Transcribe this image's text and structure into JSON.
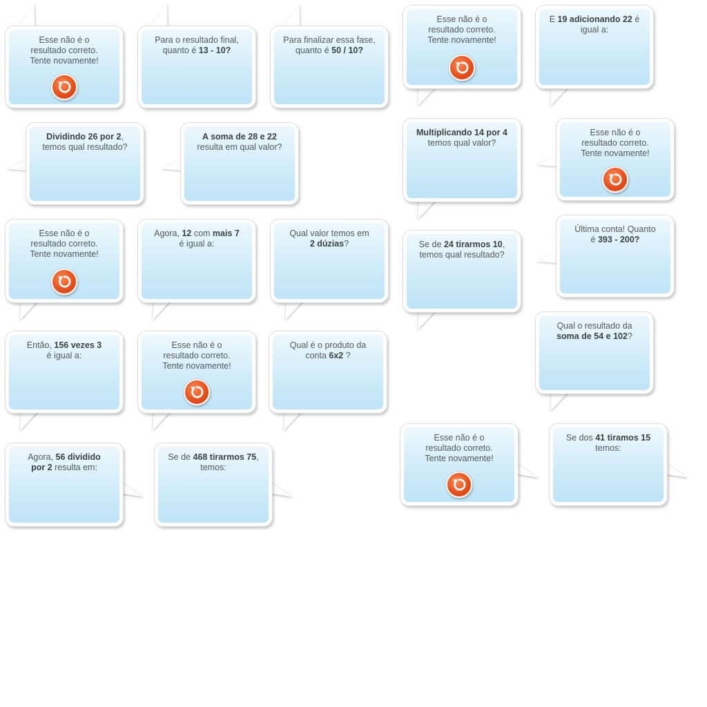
{
  "bubbles": [
    {
      "id": "b1",
      "lines": [
        [
          "Esse não é o"
        ],
        [
          "resultado correto."
        ],
        [
          "Tente novamente!"
        ]
      ],
      "retry": true
    },
    {
      "id": "b2",
      "lines": [
        [
          "Para o resultado final,"
        ],
        [
          "quanto é ",
          {
            "b": "13 - 10?"
          }
        ]
      ],
      "retry": false
    },
    {
      "id": "b3",
      "lines": [
        [
          "Para finalizar essa fase,"
        ],
        [
          "quanto é ",
          {
            "b": "50 / 10?"
          }
        ]
      ],
      "retry": false
    },
    {
      "id": "b4",
      "lines": [
        [
          "Esse não é o"
        ],
        [
          "resultado correto."
        ],
        [
          "Tente novamente!"
        ]
      ],
      "retry": true
    },
    {
      "id": "b5",
      "lines": [
        [
          "E ",
          {
            "b": "19 adicionando 22"
          },
          " é"
        ],
        [
          "igual a:"
        ]
      ],
      "retry": false
    },
    {
      "id": "b6",
      "lines": [
        [
          {
            "b": "Dividindo 26 por 2"
          },
          ","
        ],
        [
          "temos qual resultado?"
        ]
      ],
      "retry": false
    },
    {
      "id": "b7",
      "lines": [
        [
          {
            "b": "A soma de 28 e 22"
          }
        ],
        [
          "resulta em qual valor?"
        ]
      ],
      "retry": false
    },
    {
      "id": "b8",
      "lines": [
        [
          {
            "b": "Multiplicando 14 por 4"
          }
        ],
        [
          "temos qual valor?"
        ]
      ],
      "retry": false
    },
    {
      "id": "b9",
      "lines": [
        [
          "Esse não é o"
        ],
        [
          "resultado correto."
        ],
        [
          "Tente novamente!"
        ]
      ],
      "retry": true
    },
    {
      "id": "b10",
      "lines": [
        [
          "Esse não é o"
        ],
        [
          "resultado correto."
        ],
        [
          "Tente novamente!"
        ]
      ],
      "retry": true
    },
    {
      "id": "b11",
      "lines": [
        [
          "Agora, ",
          {
            "b": "12"
          },
          " com ",
          {
            "b": "mais 7"
          }
        ],
        [
          "é igual a:"
        ]
      ],
      "retry": false
    },
    {
      "id": "b12",
      "lines": [
        [
          "Qual valor temos em"
        ],
        [
          {
            "b": "2 dúzias"
          },
          "?"
        ]
      ],
      "retry": false
    },
    {
      "id": "b13",
      "lines": [
        [
          "Se de ",
          {
            "b": "24 tirarmos 10"
          },
          ","
        ],
        [
          "temos qual resultado?"
        ]
      ],
      "retry": false
    },
    {
      "id": "b14",
      "lines": [
        [
          "Última conta! Quanto"
        ],
        [
          "é ",
          {
            "b": "393 - 200?"
          }
        ]
      ],
      "retry": false
    },
    {
      "id": "b15",
      "lines": [
        [
          "Qual o resultado da"
        ],
        [
          {
            "b": "soma de 54 e 102"
          },
          "?"
        ]
      ],
      "retry": false
    },
    {
      "id": "b16",
      "lines": [
        [
          "Então, ",
          {
            "b": "156 vezes 3"
          }
        ],
        [
          "é igual a:"
        ]
      ],
      "retry": false
    },
    {
      "id": "b17",
      "lines": [
        [
          "Esse não é o"
        ],
        [
          "resultado correto."
        ],
        [
          "Tente novamente!"
        ]
      ],
      "retry": true
    },
    {
      "id": "b18",
      "lines": [
        [
          "Qual é o produto da"
        ],
        [
          "conta ",
          {
            "b": "6x2"
          },
          " ?"
        ]
      ],
      "retry": false
    },
    {
      "id": "b19",
      "lines": [
        [
          "Agora, ",
          {
            "b": "56 dividido"
          }
        ],
        [
          {
            "b": "por 2"
          },
          " resulta em:"
        ]
      ],
      "retry": false
    },
    {
      "id": "b20",
      "lines": [
        [
          "Se de ",
          {
            "b": "468 tirarmos 75"
          },
          ","
        ],
        [
          "temos:"
        ]
      ],
      "retry": false
    },
    {
      "id": "b21",
      "lines": [
        [
          "Esse não é o"
        ],
        [
          "resultado correto."
        ],
        [
          "Tente novamente!"
        ]
      ],
      "retry": true
    },
    {
      "id": "b22",
      "lines": [
        [
          "Se dos ",
          {
            "b": "41 tiramos 15"
          }
        ],
        [
          "temos:"
        ]
      ],
      "retry": false
    }
  ],
  "icons": {
    "retry": "retry-arrow-icon"
  },
  "colors": {
    "bubble_top": "#edf8fd",
    "bubble_bottom": "#bfe4f7",
    "retry": "#e8501c",
    "text": "#55585a"
  }
}
